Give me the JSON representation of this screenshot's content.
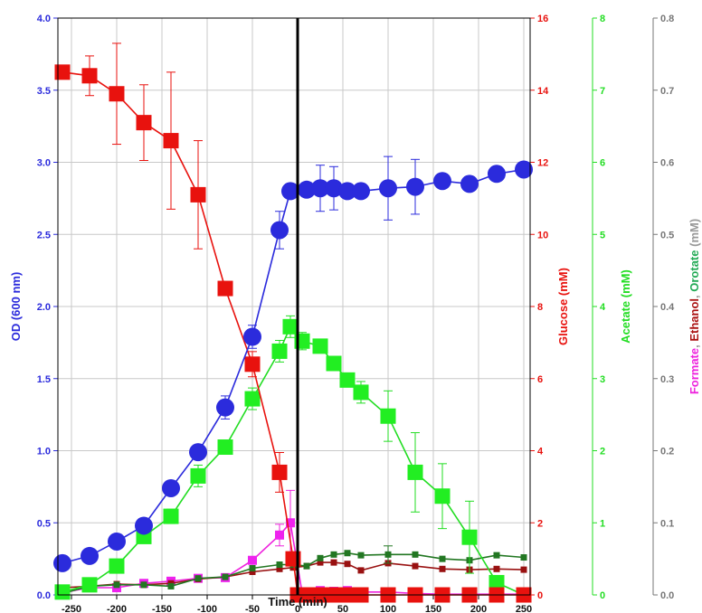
{
  "chart_data": {
    "type": "line",
    "x": {
      "label": "Time (min)",
      "lim": [
        -265,
        257
      ],
      "ticks": [
        -250,
        -200,
        -150,
        -100,
        -50,
        0,
        50,
        100,
        150,
        200,
        250
      ],
      "tick_labels": [
        "-250",
        "-200",
        "-150",
        "-100",
        "-50",
        "0",
        "50",
        "100",
        "150",
        "200",
        "250"
      ]
    },
    "marker_line_x": 0,
    "grid": true,
    "axes": {
      "od": {
        "lim": [
          0,
          4.0
        ],
        "ticks": [
          0,
          0.5,
          1.0,
          1.5,
          2.0,
          2.5,
          3.0,
          3.5,
          4.0
        ],
        "tick_labels": [
          "0.0",
          "0.5",
          "1.0",
          "1.5",
          "2.0",
          "2.5",
          "3.0",
          "3.5",
          "4.0"
        ],
        "title": "OD (600 nm)",
        "color": "#2b2bdc"
      },
      "glucose": {
        "lim": [
          0,
          16
        ],
        "ticks": [
          0,
          2,
          4,
          6,
          8,
          10,
          12,
          14,
          16
        ],
        "tick_labels": [
          "0",
          "2",
          "4",
          "6",
          "8",
          "10",
          "12",
          "14",
          "16"
        ],
        "title": "Glucose (mM)",
        "color": "#e8120e"
      },
      "acetate": {
        "lim": [
          0,
          8
        ],
        "ticks": [
          0,
          1,
          2,
          3,
          4,
          5,
          6,
          7,
          8
        ],
        "tick_labels": [
          "0",
          "1",
          "2",
          "3",
          "4",
          "5",
          "6",
          "7",
          "8"
        ],
        "title": "Acetate (mM)",
        "color": "#22dd22"
      },
      "minor": {
        "lim": [
          0,
          0.8
        ],
        "ticks": [
          0,
          0.1,
          0.2,
          0.3,
          0.4,
          0.5,
          0.6,
          0.7,
          0.8
        ],
        "tick_labels": [
          "0.0",
          "0.1",
          "0.2",
          "0.3",
          "0.4",
          "0.5",
          "0.6",
          "0.7",
          "0.8"
        ],
        "title_parts": [
          {
            "text": "Formate",
            "color": "#ee22dd"
          },
          {
            "text": ", ",
            "color": "#999999"
          },
          {
            "text": "Ethanol",
            "color": "#aa1111"
          },
          {
            "text": ", ",
            "color": "#999999"
          },
          {
            "text": "Orotate",
            "color": "#22aa55"
          },
          {
            "text": " (mM)",
            "color": "#999999"
          }
        ],
        "color": "#777777"
      }
    },
    "series": [
      {
        "name": "OD (600 nm)",
        "axis": "od",
        "marker": "circle",
        "color": "#2b2bdc",
        "line_color": "#2b2bdc",
        "x": [
          -260,
          -230,
          -200,
          -170,
          -140,
          -110,
          -80,
          -50,
          -20,
          -8,
          10,
          25,
          40,
          55,
          70,
          100,
          130,
          160,
          190,
          220,
          250
        ],
        "y": [
          0.22,
          0.27,
          0.37,
          0.48,
          0.74,
          0.99,
          1.3,
          1.79,
          2.53,
          2.8,
          2.81,
          2.82,
          2.82,
          2.8,
          2.8,
          2.82,
          2.83,
          2.87,
          2.85,
          2.92,
          2.95
        ],
        "err": [
          0,
          0,
          0,
          0,
          0,
          0,
          0.08,
          0.08,
          0.13,
          0,
          0,
          0.16,
          0.15,
          0,
          0,
          0.22,
          0.19,
          0,
          0,
          0,
          0
        ]
      },
      {
        "name": "Glucose (mM)",
        "axis": "glucose",
        "marker": "square",
        "color": "#e8120e",
        "line_color": "#e8120e",
        "x": [
          -260,
          -230,
          -200,
          -170,
          -140,
          -110,
          -80,
          -50,
          -20,
          -5,
          0,
          10,
          25,
          40,
          55,
          70,
          100,
          130,
          160,
          190,
          220,
          250
        ],
        "y": [
          14.5,
          14.4,
          13.9,
          13.1,
          12.6,
          11.1,
          8.5,
          6.4,
          3.4,
          1.0,
          0.0,
          0.0,
          0.0,
          0.0,
          0.0,
          0.0,
          0.0,
          0.0,
          0.0,
          0.0,
          0.0,
          0.0
        ],
        "err": [
          0,
          0.55,
          1.4,
          1.05,
          1.9,
          1.5,
          0,
          0.35,
          0.55,
          0,
          0,
          0,
          0,
          0,
          0,
          0,
          0,
          0,
          0,
          0,
          0,
          0
        ]
      },
      {
        "name": "Acetate (mM)",
        "axis": "acetate",
        "marker": "square",
        "color": "#22ee22",
        "line_color": "#22dd22",
        "x": [
          -260,
          -230,
          -200,
          -170,
          -140,
          -110,
          -80,
          -50,
          -20,
          -8,
          5,
          25,
          40,
          55,
          70,
          100,
          130,
          160,
          190,
          220,
          250
        ],
        "y": [
          0.04,
          0.14,
          0.4,
          0.81,
          1.09,
          1.65,
          2.05,
          2.72,
          3.38,
          3.72,
          3.52,
          3.45,
          3.21,
          2.98,
          2.81,
          2.48,
          1.7,
          1.37,
          0.8,
          0.17,
          0.0
        ],
        "err": [
          0,
          0,
          0,
          0,
          0.1,
          0.15,
          0,
          0.15,
          0.15,
          0.15,
          0.12,
          0,
          0,
          0,
          0.15,
          0.35,
          0.55,
          0.45,
          0.5,
          0,
          0
        ]
      },
      {
        "name": "Formate",
        "axis": "minor",
        "marker": "square-small",
        "color": "#ee22ee",
        "line_color": "#ee22dd",
        "x": [
          -260,
          -230,
          -200,
          -170,
          -140,
          -110,
          -80,
          -50,
          -20,
          -8,
          5,
          25,
          40,
          55,
          70,
          100,
          130,
          160,
          190,
          220,
          250
        ],
        "y": [
          0.003,
          0.01,
          0.01,
          0.016,
          0.019,
          0.023,
          0.024,
          0.048,
          0.083,
          0.1,
          0.003,
          0.006,
          0.005,
          0.006,
          0.004,
          0.004,
          0.002,
          0.001,
          0.001,
          0.001,
          0.001
        ],
        "err": [
          0,
          0,
          0,
          0,
          0,
          0,
          0,
          0,
          0.015,
          0.045,
          0,
          0,
          0,
          0.004,
          0,
          0,
          0,
          0,
          0,
          0,
          0
        ]
      },
      {
        "name": "Ethanol",
        "axis": "minor",
        "marker": "square-tiny",
        "color": "#991111",
        "line_color": "#991111",
        "x": [
          -260,
          -230,
          -200,
          -170,
          -140,
          -110,
          -80,
          -50,
          -20,
          -5,
          10,
          25,
          40,
          55,
          70,
          100,
          130,
          160,
          190,
          220,
          250
        ],
        "y": [
          0.01,
          0.012,
          0.015,
          0.014,
          0.016,
          0.022,
          0.025,
          0.032,
          0.036,
          0.038,
          0.04,
          0.045,
          0.045,
          0.043,
          0.034,
          0.044,
          0.04,
          0.036,
          0.035,
          0.036,
          0.035
        ],
        "err": [
          0,
          0,
          0,
          0,
          0,
          0,
          0,
          0,
          0,
          0,
          0,
          0,
          0,
          0,
          0,
          0,
          0,
          0,
          0,
          0,
          0
        ]
      },
      {
        "name": "Orotate",
        "axis": "minor",
        "marker": "square-tiny",
        "color": "#227722",
        "line_color": "#227722",
        "x": [
          -260,
          -230,
          -200,
          -170,
          -140,
          -110,
          -80,
          -50,
          -20,
          -5,
          10,
          25,
          40,
          55,
          70,
          100,
          130,
          160,
          190,
          220,
          250
        ],
        "y": [
          0.002,
          0.012,
          0.014,
          0.014,
          0.012,
          0.023,
          0.025,
          0.037,
          0.042,
          0.042,
          0.04,
          0.051,
          0.056,
          0.058,
          0.055,
          0.056,
          0.056,
          0.05,
          0.048,
          0.055,
          0.052
        ],
        "err": [
          0,
          0,
          0,
          0,
          0,
          0,
          0,
          0,
          0,
          0,
          0,
          0,
          0,
          0,
          0,
          0.012,
          0,
          0,
          0,
          0,
          0
        ]
      }
    ]
  }
}
